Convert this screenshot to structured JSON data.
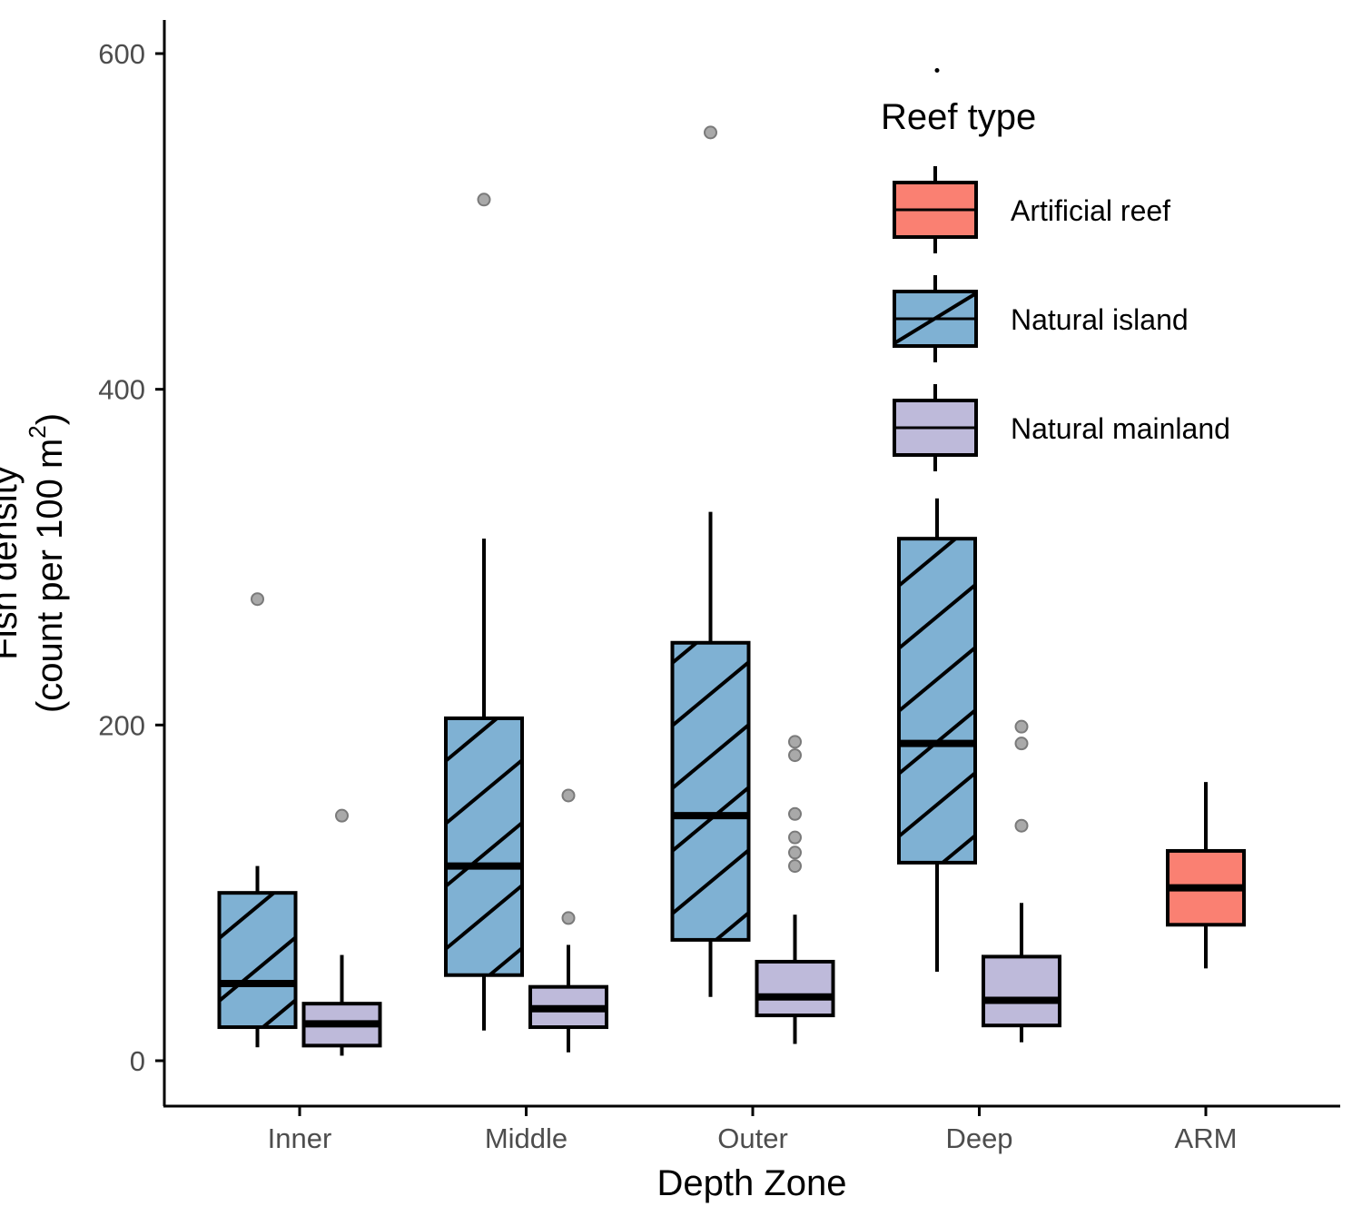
{
  "chart_data": {
    "type": "boxplot",
    "title": "",
    "xlabel": "Depth Zone",
    "ylabel_line1": "Fish density",
    "ylabel_line2_prefix": "(count per 100 m",
    "ylabel_superscript": "2",
    "ylabel_line2_suffix": ")",
    "ylim": [
      -27,
      620
    ],
    "yticks": [
      0,
      200,
      400,
      600
    ],
    "ytick_labels": [
      "0",
      "200",
      "400",
      "600"
    ],
    "categories": [
      "Inner",
      "Middle",
      "Outer",
      "Deep",
      "ARM"
    ],
    "grid": false,
    "legend": {
      "title": "Reef type",
      "position": "top-right",
      "entries": [
        {
          "label": "Artificial reef",
          "color": "#FA8072",
          "hatched": false
        },
        {
          "label": "Natural island",
          "color": "#7FB1D3",
          "hatched": true
        },
        {
          "label": "Natural mainland",
          "color": "#BEBADA",
          "hatched": false
        }
      ]
    },
    "series": [
      {
        "name": "Natural island",
        "color": "#7FB1D3",
        "hatched": true,
        "boxes": [
          {
            "category": "Inner",
            "whisker_low": 8,
            "q1": 20,
            "median": 46,
            "q3": 100,
            "whisker_high": 116,
            "outliers": [
              275
            ]
          },
          {
            "category": "Middle",
            "whisker_low": 18,
            "q1": 51,
            "median": 116,
            "q3": 204,
            "whisker_high": 311,
            "outliers": [
              513
            ]
          },
          {
            "category": "Outer",
            "whisker_low": 38,
            "q1": 72,
            "median": 146,
            "q3": 249,
            "whisker_high": 327,
            "outliers": [
              553
            ]
          },
          {
            "category": "Deep",
            "whisker_low": 53,
            "q1": 118,
            "median": 189,
            "q3": 311,
            "whisker_high": 335,
            "outliers": [
              590
            ]
          }
        ]
      },
      {
        "name": "Natural mainland",
        "color": "#BEBADA",
        "hatched": false,
        "boxes": [
          {
            "category": "Inner",
            "whisker_low": 3,
            "q1": 9,
            "median": 22,
            "q3": 34,
            "whisker_high": 63,
            "outliers": [
              146
            ]
          },
          {
            "category": "Middle",
            "whisker_low": 5,
            "q1": 20,
            "median": 31,
            "q3": 44,
            "whisker_high": 69,
            "outliers": [
              85,
              158
            ]
          },
          {
            "category": "Outer",
            "whisker_low": 10,
            "q1": 27,
            "median": 38,
            "q3": 59,
            "whisker_high": 87,
            "outliers": [
              116,
              124,
              133,
              147,
              182,
              190
            ]
          },
          {
            "category": "Deep",
            "whisker_low": 11,
            "q1": 21,
            "median": 36,
            "q3": 62,
            "whisker_high": 94,
            "outliers": [
              140,
              189,
              199
            ]
          }
        ]
      },
      {
        "name": "Artificial reef",
        "color": "#FA8072",
        "hatched": false,
        "boxes": [
          {
            "category": "ARM",
            "whisker_low": 55,
            "q1": 81,
            "median": 103,
            "q3": 125,
            "whisker_high": 166,
            "outliers": []
          }
        ]
      }
    ]
  }
}
